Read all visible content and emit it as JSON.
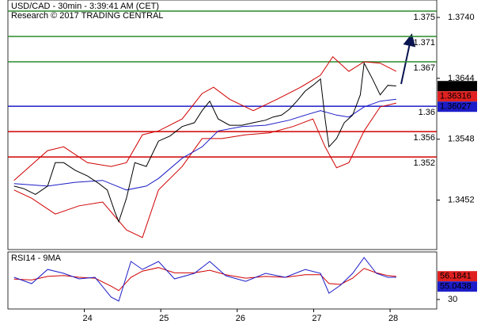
{
  "chart_data": [
    {
      "type": "line",
      "title": "USD/CAD - 30min - 3:39:41 AM (CET)",
      "subtitle": "Research © 2017 TRADING CENTRAL",
      "xlim": [
        23,
        28.61
      ],
      "xticks": [
        24,
        25,
        26,
        27,
        28
      ],
      "ylim": [
        1.3374,
        1.37675
      ],
      "yticks": [
        {
          "value": 1.374,
          "label": "1.3740"
        },
        1.3644,
        1.3548,
        1.3452
      ],
      "series": [
        {
          "color": "#d00000",
          "x": [
            23.08,
            23.52,
            23.73,
            24.04,
            24.35,
            24.55,
            24.76,
            24.97,
            25.28,
            25.54,
            25.69,
            25.9,
            26.21,
            26.52,
            26.83,
            27.09,
            27.25,
            27.46,
            27.66,
            27.87,
            28.08
          ],
          "values": [
            1.3483,
            1.353,
            1.3536,
            1.3511,
            1.3505,
            1.3511,
            1.3555,
            1.3561,
            1.358,
            1.362,
            1.363,
            1.3611,
            1.3593,
            1.3611,
            1.363,
            1.3649,
            1.3678,
            1.3655,
            1.367,
            1.3668,
            1.3655
          ]
        },
        {
          "color": "#d00000",
          "x": [
            23.08,
            23.31,
            23.62,
            23.93,
            24.24,
            24.55,
            24.76,
            24.97,
            25.28,
            25.54,
            25.8,
            26.11,
            26.42,
            26.73,
            26.99,
            27.15,
            27.3,
            27.46,
            27.66,
            27.87,
            28.08
          ],
          "values": [
            1.3468,
            1.3455,
            1.343,
            1.3443,
            1.3449,
            1.3405,
            1.3393,
            1.3468,
            1.3505,
            1.3549,
            1.3549,
            1.3555,
            1.3558,
            1.3568,
            1.358,
            1.3536,
            1.3503,
            1.3511,
            1.3561,
            1.3599,
            1.3605
          ]
        },
        {
          "color": "#1c1cc8",
          "x": [
            23.08,
            23.52,
            23.88,
            24.24,
            24.55,
            24.81,
            24.97,
            25.28,
            25.54,
            25.75,
            26.06,
            26.37,
            26.68,
            26.89,
            27.09,
            27.3,
            27.46,
            27.66,
            27.87,
            28.08
          ],
          "values": [
            1.3478,
            1.3474,
            1.348,
            1.3483,
            1.3468,
            1.3474,
            1.3486,
            1.3518,
            1.3536,
            1.3561,
            1.3568,
            1.357,
            1.3578,
            1.3586,
            1.3593,
            1.3586,
            1.3583,
            1.3599,
            1.3608,
            1.3611
          ]
        },
        {
          "color": "#000000",
          "x": [
            23.08,
            23.21,
            23.36,
            23.52,
            23.62,
            23.73,
            23.88,
            24.04,
            24.19,
            24.3,
            24.4,
            24.45,
            24.55,
            24.66,
            24.81,
            24.97,
            25.12,
            25.28,
            25.44,
            25.54,
            25.64,
            25.75,
            25.9,
            26.06,
            26.21,
            26.37,
            26.47,
            26.58,
            26.68,
            26.78,
            26.89,
            26.99,
            27.09,
            27.15,
            27.2,
            27.3,
            27.4,
            27.51,
            27.61,
            27.66,
            27.77,
            27.87,
            27.97,
            28.08
          ],
          "values": [
            1.3474,
            1.347,
            1.3461,
            1.3474,
            1.3511,
            1.3511,
            1.3499,
            1.349,
            1.3478,
            1.3468,
            1.3433,
            1.3418,
            1.3455,
            1.3511,
            1.3505,
            1.3545,
            1.3553,
            1.3568,
            1.3574,
            1.3593,
            1.3608,
            1.358,
            1.357,
            1.357,
            1.3574,
            1.3578,
            1.3583,
            1.3586,
            1.3595,
            1.3608,
            1.3624,
            1.3633,
            1.3643,
            1.358,
            1.3536,
            1.3549,
            1.3574,
            1.3586,
            1.3618,
            1.3668,
            1.3643,
            1.3618,
            1.3633,
            1.3632
          ]
        }
      ],
      "levels": [
        {
          "value": 1.375,
          "color": "#2a8a2a"
        },
        {
          "value": 1.371,
          "color": "#2a8a2a"
        },
        {
          "value": 1.367,
          "color": "#2a8a2a"
        },
        {
          "value": 1.36,
          "color": "#1c1cc8"
        },
        {
          "value": 1.356,
          "color": "#d00000"
        },
        {
          "value": 1.352,
          "color": "#d00000"
        }
      ],
      "price_labels": [
        {
          "value": 1.36317,
          "color": "#000000"
        },
        {
          "value": 1.36316,
          "color": "#e02020"
        },
        {
          "value": 1.36027,
          "color": "#1c1cc8"
        }
      ]
    },
    {
      "type": "line",
      "title": "RSI14 - 9MA",
      "xlim": [
        23,
        28.61
      ],
      "ylim": [
        19.3,
        83.6
      ],
      "yticks": [
        30
      ],
      "series": [
        {
          "color": "#d00000",
          "x": [
            23.08,
            23.31,
            23.52,
            23.73,
            23.93,
            24.14,
            24.35,
            24.45,
            24.61,
            24.76,
            24.97,
            25.18,
            25.44,
            25.64,
            25.85,
            26.11,
            26.37,
            26.63,
            26.89,
            27.09,
            27.2,
            27.35,
            27.51,
            27.66,
            27.82,
            27.97,
            28.08
          ],
          "values": [
            53,
            52,
            56,
            57,
            55,
            54,
            45,
            40,
            55,
            62,
            66,
            60,
            60,
            63,
            58,
            54,
            56,
            55,
            58,
            58,
            48,
            47,
            54,
            65,
            60,
            57,
            56
          ]
        },
        {
          "color": "#1c1cc8",
          "x": [
            23.08,
            23.31,
            23.52,
            23.73,
            23.93,
            24.14,
            24.35,
            24.45,
            24.61,
            24.76,
            24.97,
            25.18,
            25.44,
            25.64,
            25.85,
            26.11,
            26.37,
            26.63,
            26.89,
            27.09,
            27.2,
            27.35,
            27.51,
            27.66,
            27.82,
            27.97,
            28.08
          ],
          "values": [
            55.0,
            47.9,
            63.9,
            59.5,
            53.2,
            55.0,
            32.7,
            28.2,
            72.9,
            63.9,
            72.9,
            53.2,
            59.5,
            72.9,
            56.8,
            50.5,
            59.5,
            55.0,
            63.9,
            59.5,
            37.1,
            46.1,
            59.5,
            77.3,
            59.5,
            55.0,
            55.0
          ]
        }
      ],
      "price_labels": [
        {
          "value": 56.1841,
          "color": "#e02020"
        },
        {
          "value": 55.0438,
          "color": "#1c1cc8"
        }
      ]
    }
  ]
}
